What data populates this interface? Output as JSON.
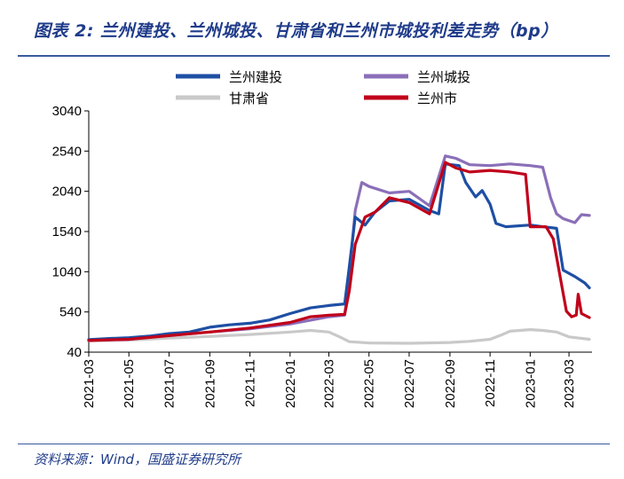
{
  "header": {
    "title": "图表 2: 兰州建投、兰州城投、甘肃省和兰州市城投利差走势（bp）"
  },
  "footer": {
    "source": "资料来源：Wind，国盛证券研究所"
  },
  "chart_data": {
    "type": "line",
    "title": "图表 2: 兰州建投、兰州城投、甘肃省和兰州市城投利差走势（bp）",
    "xlabel": "",
    "ylabel": "",
    "ylim": [
      40,
      3040
    ],
    "yticks": [
      40,
      540,
      1040,
      1540,
      2040,
      2540,
      3040
    ],
    "x_range": [
      "2021-03-01",
      "2023-04-05"
    ],
    "xticks": [
      "2021-03",
      "2021-05",
      "2021-07",
      "2021-09",
      "2021-11",
      "2022-01",
      "2022-03",
      "2022-05",
      "2022-07",
      "2022-09",
      "2022-11",
      "2023-01",
      "2023-03"
    ],
    "legend_position": "top",
    "grid": false,
    "series": [
      {
        "name": "兰州建投",
        "color": "#1e4fa3",
        "points": [
          [
            "2021-03-01",
            195
          ],
          [
            "2021-04-01",
            210
          ],
          [
            "2021-05-01",
            220
          ],
          [
            "2021-06-01",
            240
          ],
          [
            "2021-07-01",
            270
          ],
          [
            "2021-08-01",
            290
          ],
          [
            "2021-09-01",
            350
          ],
          [
            "2021-10-01",
            380
          ],
          [
            "2021-11-01",
            400
          ],
          [
            "2021-12-01",
            440
          ],
          [
            "2022-01-01",
            520
          ],
          [
            "2022-02-01",
            590
          ],
          [
            "2022-03-01",
            620
          ],
          [
            "2022-03-25",
            640
          ],
          [
            "2022-04-01",
            1100
          ],
          [
            "2022-04-10",
            1720
          ],
          [
            "2022-04-25",
            1620
          ],
          [
            "2022-05-10",
            1780
          ],
          [
            "2022-06-01",
            1920
          ],
          [
            "2022-07-01",
            1940
          ],
          [
            "2022-08-01",
            1800
          ],
          [
            "2022-08-15",
            1760
          ],
          [
            "2022-08-25",
            2380
          ],
          [
            "2022-09-15",
            2360
          ],
          [
            "2022-09-25",
            2150
          ],
          [
            "2022-10-10",
            1970
          ],
          [
            "2022-10-20",
            2050
          ],
          [
            "2022-11-01",
            1880
          ],
          [
            "2022-11-10",
            1640
          ],
          [
            "2022-11-25",
            1600
          ],
          [
            "2023-01-01",
            1620
          ],
          [
            "2023-01-20",
            1600
          ],
          [
            "2023-02-10",
            1580
          ],
          [
            "2023-02-20",
            1060
          ],
          [
            "2023-03-10",
            980
          ],
          [
            "2023-03-25",
            900
          ],
          [
            "2023-04-01",
            840
          ]
        ]
      },
      {
        "name": "兰州城投",
        "color": "#8a6fb8",
        "points": [
          [
            "2021-03-01",
            190
          ],
          [
            "2021-05-01",
            200
          ],
          [
            "2021-07-01",
            250
          ],
          [
            "2021-09-01",
            290
          ],
          [
            "2021-11-01",
            330
          ],
          [
            "2022-01-01",
            390
          ],
          [
            "2022-03-01",
            480
          ],
          [
            "2022-03-25",
            500
          ],
          [
            "2022-04-01",
            1000
          ],
          [
            "2022-04-10",
            1800
          ],
          [
            "2022-04-20",
            2150
          ],
          [
            "2022-05-01",
            2100
          ],
          [
            "2022-06-01",
            2020
          ],
          [
            "2022-07-01",
            2040
          ],
          [
            "2022-08-01",
            1860
          ],
          [
            "2022-08-25",
            2480
          ],
          [
            "2022-09-10",
            2450
          ],
          [
            "2022-10-01",
            2370
          ],
          [
            "2022-11-01",
            2360
          ],
          [
            "2022-12-01",
            2380
          ],
          [
            "2023-01-01",
            2360
          ],
          [
            "2023-01-20",
            2340
          ],
          [
            "2023-02-01",
            1960
          ],
          [
            "2023-02-10",
            1760
          ],
          [
            "2023-02-20",
            1700
          ],
          [
            "2023-03-10",
            1650
          ],
          [
            "2023-03-20",
            1750
          ],
          [
            "2023-04-01",
            1740
          ]
        ]
      },
      {
        "name": "甘肃省",
        "color": "#c9c9c9",
        "points": [
          [
            "2021-03-01",
            180
          ],
          [
            "2021-05-01",
            190
          ],
          [
            "2021-07-01",
            215
          ],
          [
            "2021-09-01",
            235
          ],
          [
            "2021-11-01",
            260
          ],
          [
            "2022-01-01",
            290
          ],
          [
            "2022-02-01",
            310
          ],
          [
            "2022-03-01",
            290
          ],
          [
            "2022-03-20",
            220
          ],
          [
            "2022-04-01",
            170
          ],
          [
            "2022-05-01",
            155
          ],
          [
            "2022-07-01",
            150
          ],
          [
            "2022-09-01",
            160
          ],
          [
            "2022-10-01",
            175
          ],
          [
            "2022-11-01",
            200
          ],
          [
            "2022-11-20",
            260
          ],
          [
            "2022-12-01",
            300
          ],
          [
            "2023-01-01",
            320
          ],
          [
            "2023-01-20",
            310
          ],
          [
            "2023-02-10",
            290
          ],
          [
            "2023-03-01",
            230
          ],
          [
            "2023-04-01",
            200
          ]
        ]
      },
      {
        "name": "兰州市",
        "color": "#c0001a",
        "points": [
          [
            "2021-03-01",
            185
          ],
          [
            "2021-05-01",
            200
          ],
          [
            "2021-07-01",
            245
          ],
          [
            "2021-09-01",
            290
          ],
          [
            "2021-11-01",
            340
          ],
          [
            "2022-01-01",
            410
          ],
          [
            "2022-02-01",
            480
          ],
          [
            "2022-03-01",
            500
          ],
          [
            "2022-03-25",
            510
          ],
          [
            "2022-04-01",
            800
          ],
          [
            "2022-04-10",
            1380
          ],
          [
            "2022-04-25",
            1720
          ],
          [
            "2022-05-10",
            1780
          ],
          [
            "2022-06-01",
            1960
          ],
          [
            "2022-07-01",
            1900
          ],
          [
            "2022-08-01",
            1760
          ],
          [
            "2022-08-25",
            2400
          ],
          [
            "2022-09-10",
            2330
          ],
          [
            "2022-10-01",
            2280
          ],
          [
            "2022-11-01",
            2300
          ],
          [
            "2022-12-01",
            2280
          ],
          [
            "2022-12-25",
            2250
          ],
          [
            "2023-01-01",
            1600
          ],
          [
            "2023-01-25",
            1600
          ],
          [
            "2023-02-05",
            1450
          ],
          [
            "2023-02-15",
            1000
          ],
          [
            "2023-02-25",
            550
          ],
          [
            "2023-03-05",
            480
          ],
          [
            "2023-03-12",
            500
          ],
          [
            "2023-03-15",
            760
          ],
          [
            "2023-03-20",
            520
          ],
          [
            "2023-04-01",
            470
          ]
        ]
      }
    ]
  }
}
